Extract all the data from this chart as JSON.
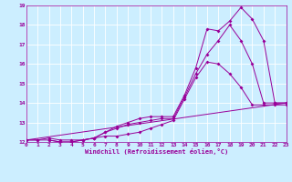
{
  "xlabel": "Windchill (Refroidissement éolien,°C)",
  "bg_color": "#cceeff",
  "line_color": "#990099",
  "grid_color": "#ffffff",
  "xlim": [
    0,
    23
  ],
  "ylim": [
    12,
    19
  ],
  "xticks": [
    0,
    1,
    2,
    3,
    4,
    5,
    6,
    7,
    8,
    9,
    10,
    11,
    12,
    13,
    14,
    15,
    16,
    17,
    18,
    19,
    20,
    21,
    22,
    23
  ],
  "yticks": [
    12,
    13,
    14,
    15,
    16,
    17,
    18,
    19
  ],
  "series": [
    {
      "x": [
        0,
        23
      ],
      "y": [
        12.1,
        14.0
      ],
      "has_marker": false
    },
    {
      "x": [
        0,
        1,
        2,
        3,
        4,
        5,
        6,
        7,
        8,
        9,
        10,
        11,
        12,
        13,
        14,
        15,
        16,
        17,
        18,
        19,
        20,
        21,
        22,
        23
      ],
      "y": [
        12.1,
        12.1,
        12.2,
        12.1,
        12.1,
        12.1,
        12.2,
        12.3,
        12.3,
        12.4,
        12.5,
        12.7,
        12.9,
        13.1,
        14.2,
        15.3,
        16.1,
        16.0,
        15.5,
        14.8,
        13.9,
        13.9,
        13.9,
        13.9
      ],
      "has_marker": true
    },
    {
      "x": [
        0,
        1,
        2,
        3,
        4,
        5,
        6,
        7,
        8,
        9,
        10,
        11,
        12,
        13,
        14,
        15,
        16,
        17,
        18,
        19,
        20,
        21,
        22,
        23
      ],
      "y": [
        12.1,
        12.1,
        12.1,
        12.0,
        12.0,
        12.1,
        12.2,
        12.5,
        12.7,
        12.9,
        13.0,
        13.1,
        13.2,
        13.2,
        14.3,
        15.5,
        16.5,
        17.2,
        18.0,
        17.2,
        16.0,
        14.0,
        14.0,
        14.0
      ],
      "has_marker": true
    },
    {
      "x": [
        2,
        3,
        4,
        5,
        6,
        7,
        8,
        9,
        10,
        11,
        12,
        13,
        14,
        15,
        16,
        17,
        18,
        19,
        20,
        21,
        22,
        23
      ],
      "y": [
        12.1,
        12.0,
        12.0,
        12.1,
        12.2,
        12.5,
        12.8,
        13.0,
        13.2,
        13.3,
        13.3,
        13.3,
        14.4,
        15.8,
        17.8,
        17.7,
        18.2,
        18.9,
        18.3,
        17.2,
        14.0,
        14.0
      ],
      "has_marker": true
    }
  ]
}
